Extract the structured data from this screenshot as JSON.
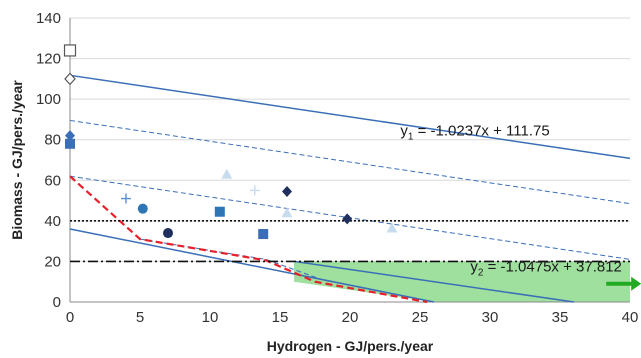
{
  "chart_data": {
    "type": "scatter",
    "title": "",
    "xlabel": "Hydrogen - GJ/pers./year",
    "ylabel": "Biomass - GJ/pers./year",
    "xlim": [
      0,
      40
    ],
    "ylim": [
      0,
      140
    ],
    "x_ticks": [
      "0",
      "5",
      "10",
      "15",
      "20",
      "25",
      "30",
      "35",
      "40"
    ],
    "y_ticks": [
      "0",
      "20",
      "40",
      "60",
      "80",
      "100",
      "120",
      "140"
    ],
    "grid": "horizontal",
    "lines": [
      {
        "kind": "solid",
        "color": "#3a6fb7",
        "points": [
          [
            0,
            111.75
          ],
          [
            40,
            70.8
          ]
        ]
      },
      {
        "kind": "dashed",
        "color": "#3a6fb7",
        "points": [
          [
            0,
            89.5
          ],
          [
            40,
            48.5
          ]
        ]
      },
      {
        "kind": "dashed",
        "color": "#3a6fb7",
        "points": [
          [
            0,
            62
          ],
          [
            40,
            21
          ]
        ]
      },
      {
        "kind": "solid",
        "color": "#3a6fb7",
        "points": [
          [
            0,
            36
          ],
          [
            26,
            0
          ]
        ]
      },
      {
        "kind": "solid",
        "color": "#3a6fb7",
        "points": [
          [
            16,
            20
          ],
          [
            36,
            0
          ]
        ]
      },
      {
        "kind": "dashed",
        "color": "#3a6fb7",
        "points": [
          [
            5,
            31
          ],
          [
            14,
            21
          ],
          [
            18,
            11
          ],
          [
            26,
            0
          ]
        ]
      },
      {
        "kind": "red-dashed",
        "color": "#e8202a",
        "points": [
          [
            0,
            62
          ],
          [
            5,
            31
          ],
          [
            14,
            20.5
          ],
          [
            17.5,
            10
          ],
          [
            25.5,
            0
          ]
        ]
      },
      {
        "kind": "dotted",
        "color": "#111111",
        "points": [
          [
            0,
            40
          ],
          [
            40,
            40
          ]
        ]
      },
      {
        "kind": "dash-dot",
        "color": "#111111",
        "points": [
          [
            0,
            20
          ],
          [
            40,
            20
          ]
        ]
      }
    ],
    "shaded_region": {
      "color": "#7fd67f",
      "points": [
        [
          16,
          20
        ],
        [
          40,
          20
        ],
        [
          40,
          0
        ],
        [
          36,
          0
        ],
        [
          26,
          0
        ],
        [
          16,
          10
        ]
      ]
    },
    "arrow": {
      "color": "#22aa22",
      "from": [
        38.3,
        9
      ],
      "to": [
        40.8,
        9
      ]
    },
    "points": [
      {
        "x": 0,
        "y": 124,
        "marker": "square-open",
        "color": "#555555"
      },
      {
        "x": 0,
        "y": 110,
        "marker": "diamond-open",
        "color": "#555555"
      },
      {
        "x": 0,
        "y": 82,
        "marker": "diamond",
        "color": "#3a6fb7"
      },
      {
        "x": 0,
        "y": 78,
        "marker": "square",
        "color": "#3a6fb7"
      },
      {
        "x": 4,
        "y": 51,
        "marker": "plus",
        "color": "#5b8fd0"
      },
      {
        "x": 5.2,
        "y": 46,
        "marker": "circle",
        "color": "#2e75b6"
      },
      {
        "x": 7,
        "y": 34,
        "marker": "circle",
        "color": "#1f2f5e"
      },
      {
        "x": 10.7,
        "y": 44.5,
        "marker": "square",
        "color": "#2e75b6"
      },
      {
        "x": 11.2,
        "y": 63,
        "marker": "triangle",
        "color": "#c9dcef"
      },
      {
        "x": 13.2,
        "y": 55,
        "marker": "plus",
        "color": "#c9dcef"
      },
      {
        "x": 13.8,
        "y": 33.5,
        "marker": "square",
        "color": "#3a6fb7"
      },
      {
        "x": 15.5,
        "y": 54.5,
        "marker": "diamond",
        "color": "#1f2f5e"
      },
      {
        "x": 15.5,
        "y": 44,
        "marker": "triangle",
        "color": "#c9dcef"
      },
      {
        "x": 19.8,
        "y": 41,
        "marker": "diamond",
        "color": "#1f2f5e"
      },
      {
        "x": 23,
        "y": 36.5,
        "marker": "triangle",
        "color": "#c9dcef"
      }
    ],
    "annotations": [
      {
        "id": "y1",
        "text_main": "y",
        "sub": "1",
        "text_rest": " = -1.0237x + 111.75",
        "x": 23.6,
        "y": 82
      },
      {
        "id": "y2",
        "text_main": "y",
        "sub": "2",
        "text_rest": " = -1.0475x + 37.812",
        "x": 28.6,
        "y": 15
      }
    ]
  }
}
